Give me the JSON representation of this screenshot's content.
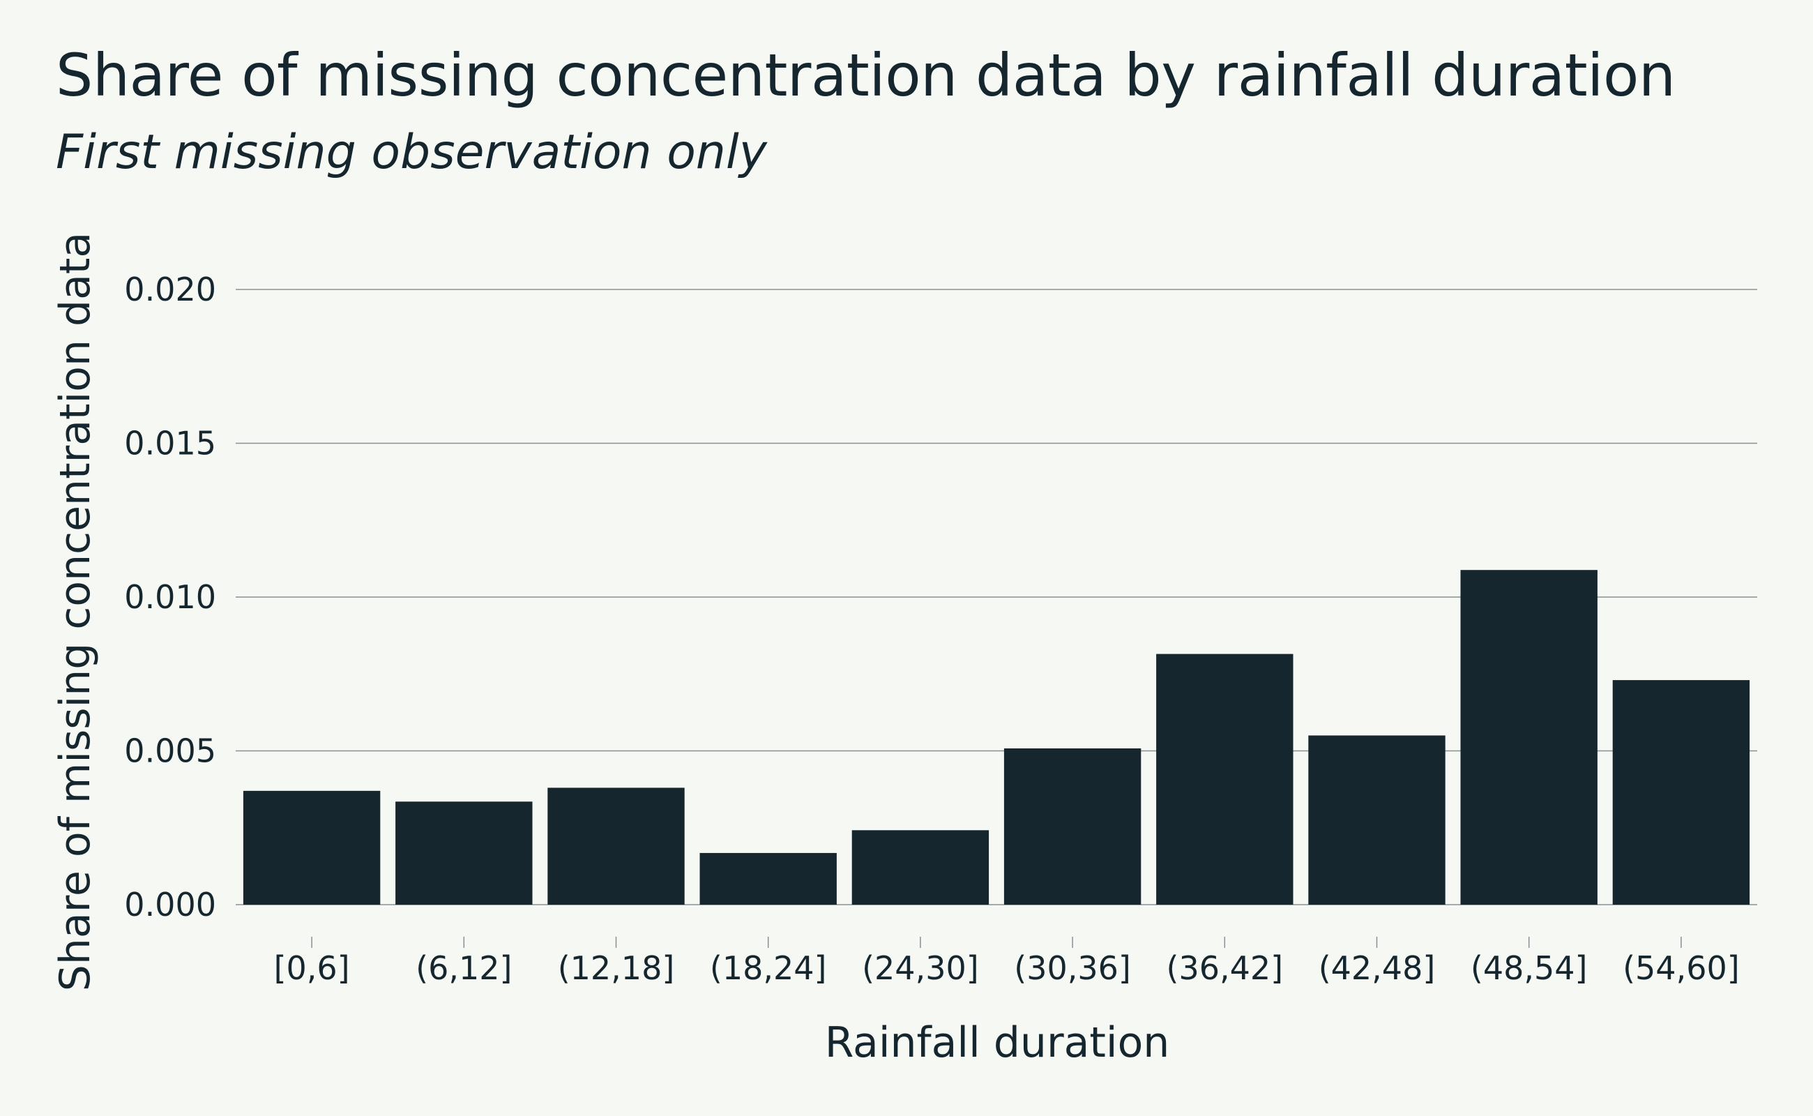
{
  "chart_data": {
    "type": "bar",
    "title": "Share of missing concentration data by rainfall duration",
    "subtitle": "First missing observation only",
    "xlabel": "Rainfall duration",
    "ylabel": "Share of missing concentration data",
    "categories": [
      "[0,6]",
      "(6,12]",
      "(12,18]",
      "(18,24]",
      "(24,30]",
      "(30,36]",
      "(36,42]",
      "(42,48]",
      "(48,54]",
      "(54,60]"
    ],
    "values": [
      0.0037,
      0.00335,
      0.0038,
      0.00168,
      0.00242,
      0.00508,
      0.00815,
      0.0055,
      0.01088,
      0.0073
    ],
    "ylim": [
      0,
      0.02
    ],
    "yticks": [
      "0.000",
      "0.005",
      "0.010",
      "0.015",
      "0.020"
    ],
    "ytick_values": [
      0,
      0.005,
      0.01,
      0.015,
      0.02
    ],
    "grid": true,
    "colors": {
      "bar": "#15262e",
      "grid": "#8a8f91",
      "text": "#15262e",
      "background": "#f6f8f4"
    }
  }
}
